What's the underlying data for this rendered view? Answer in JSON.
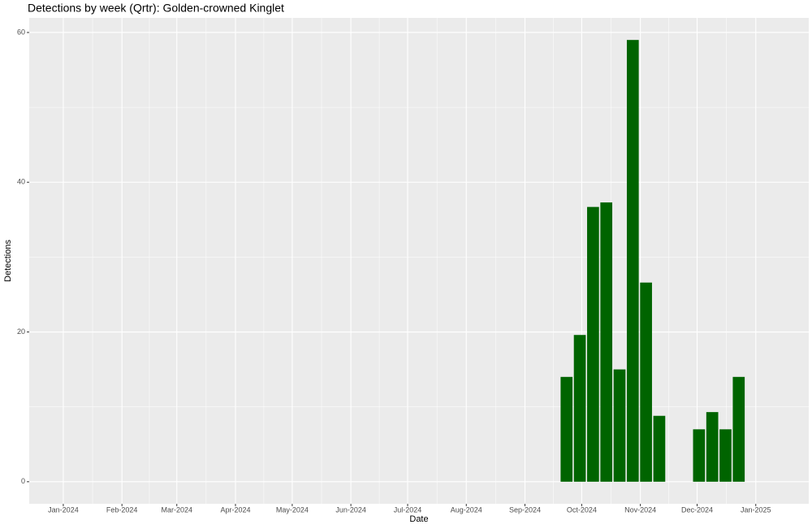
{
  "chart_data": {
    "type": "bar",
    "title": "Detections by week (Qrtr): Golden-crowned Kinglet",
    "x_label": "Date",
    "y_label": "Detections",
    "x": [
      "2024-09-23",
      "2024-09-30",
      "2024-10-07",
      "2024-10-14",
      "2024-10-21",
      "2024-10-28",
      "2024-11-04",
      "2024-11-11",
      "2024-12-02",
      "2024-12-09",
      "2024-12-16",
      "2024-12-23"
    ],
    "values": [
      14,
      19.6,
      36.7,
      37.3,
      15,
      59,
      26.6,
      8.8,
      7,
      9.3,
      7,
      14
    ],
    "color": "#006400",
    "xlim": [
      "2023-12-14",
      "2025-01-29"
    ],
    "xticks": [
      {
        "value": "2024-01-01",
        "label": "Jan-2024"
      },
      {
        "value": "2024-02-01",
        "label": "Feb-2024"
      },
      {
        "value": "2024-03-01",
        "label": "Mar-2024"
      },
      {
        "value": "2024-04-01",
        "label": "Apr-2024"
      },
      {
        "value": "2024-05-01",
        "label": "May-2024"
      },
      {
        "value": "2024-06-01",
        "label": "Jun-2024"
      },
      {
        "value": "2024-07-01",
        "label": "Jul-2024"
      },
      {
        "value": "2024-08-01",
        "label": "Aug-2024"
      },
      {
        "value": "2024-09-01",
        "label": "Sep-2024"
      },
      {
        "value": "2024-10-01",
        "label": "Oct-2024"
      },
      {
        "value": "2024-11-01",
        "label": "Nov-2024"
      },
      {
        "value": "2024-12-01",
        "label": "Dec-2024"
      },
      {
        "value": "2025-01-01",
        "label": "Jan-2025"
      }
    ],
    "ylim": [
      -2.95,
      61.95
    ],
    "yticks": [
      0,
      20,
      40,
      60
    ],
    "grid": true
  }
}
